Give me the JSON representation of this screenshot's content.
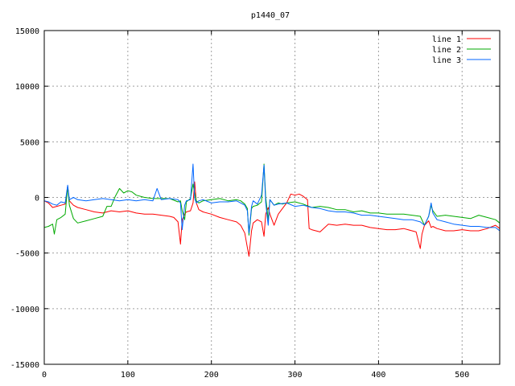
{
  "chart_data": {
    "type": "line",
    "title": "p1440_07",
    "xlabel": "",
    "ylabel": "",
    "xlim": [
      0,
      545
    ],
    "ylim": [
      -15000,
      15000
    ],
    "xticks": [
      0,
      100,
      200,
      300,
      400,
      500
    ],
    "yticks": [
      -15000,
      -10000,
      -5000,
      0,
      5000,
      10000,
      15000
    ],
    "grid": true,
    "legend_position": "top-right",
    "series": [
      {
        "name": "line 1",
        "color": "#ff0000",
        "x": [
          0,
          5,
          10,
          15,
          20,
          25,
          28,
          30,
          35,
          40,
          50,
          60,
          70,
          80,
          90,
          100,
          110,
          120,
          130,
          140,
          150,
          155,
          160,
          163,
          165,
          168,
          170,
          175,
          178,
          180,
          182,
          185,
          190,
          200,
          210,
          220,
          230,
          235,
          240,
          243,
          245,
          248,
          250,
          255,
          260,
          263,
          265,
          268,
          270,
          275,
          280,
          285,
          290,
          295,
          300,
          305,
          310,
          315,
          317,
          320,
          330,
          340,
          350,
          360,
          370,
          380,
          390,
          400,
          410,
          420,
          430,
          440,
          445,
          450,
          452,
          455,
          460,
          463,
          465,
          470,
          480,
          490,
          500,
          510,
          520,
          530,
          540,
          545
        ],
        "values": [
          -300,
          -500,
          -900,
          -800,
          -700,
          -600,
          1000,
          -300,
          -700,
          -900,
          -1100,
          -1300,
          -1400,
          -1200,
          -1300,
          -1200,
          -1400,
          -1500,
          -1500,
          -1600,
          -1700,
          -1800,
          -2200,
          -4200,
          -2000,
          -1500,
          -1300,
          -1200,
          -500,
          1400,
          -500,
          -1100,
          -1300,
          -1500,
          -1800,
          -2000,
          -2200,
          -2500,
          -3200,
          -4500,
          -5300,
          -3000,
          -2300,
          -2000,
          -2200,
          -3500,
          -1500,
          -900,
          -1500,
          -2500,
          -1500,
          -1000,
          -500,
          300,
          200,
          300,
          100,
          -200,
          -2800,
          -2900,
          -3100,
          -2400,
          -2500,
          -2400,
          -2500,
          -2500,
          -2700,
          -2800,
          -2900,
          -2900,
          -2800,
          -3000,
          -3100,
          -4600,
          -3300,
          -2500,
          -2100,
          -2700,
          -2600,
          -2800,
          -3000,
          -3000,
          -2900,
          -3000,
          -3000,
          -2800,
          -2500,
          -2800
        ]
      },
      {
        "name": "line 2",
        "color": "#00aa00",
        "x": [
          0,
          5,
          10,
          12,
          15,
          20,
          25,
          28,
          30,
          35,
          40,
          50,
          60,
          70,
          75,
          80,
          85,
          90,
          95,
          100,
          105,
          110,
          120,
          130,
          140,
          150,
          160,
          163,
          165,
          168,
          170,
          175,
          178,
          180,
          182,
          185,
          190,
          200,
          210,
          220,
          230,
          235,
          240,
          243,
          245,
          248,
          250,
          255,
          260,
          263,
          265,
          268,
          270,
          275,
          280,
          285,
          290,
          300,
          310,
          320,
          330,
          340,
          350,
          360,
          370,
          380,
          390,
          400,
          410,
          420,
          430,
          440,
          450,
          455,
          460,
          463,
          465,
          470,
          480,
          490,
          500,
          510,
          520,
          530,
          540,
          545
        ],
        "values": [
          -2700,
          -2600,
          -2400,
          -3300,
          -2000,
          -1800,
          -1500,
          1000,
          -700,
          -1900,
          -2300,
          -2100,
          -1900,
          -1700,
          -800,
          -800,
          100,
          800,
          400,
          600,
          500,
          200,
          0,
          -100,
          -100,
          -100,
          -400,
          -300,
          -1200,
          -2000,
          -400,
          -100,
          1200,
          400,
          -300,
          -500,
          -300,
          -200,
          -100,
          -300,
          -200,
          -300,
          -600,
          -1000,
          -3400,
          -1000,
          -800,
          -700,
          -400,
          3000,
          0,
          -2000,
          -200,
          -700,
          -500,
          -600,
          -500,
          -400,
          -600,
          -900,
          -800,
          -900,
          -1100,
          -1100,
          -1300,
          -1200,
          -1400,
          -1400,
          -1500,
          -1500,
          -1500,
          -1600,
          -1700,
          -2500,
          -1700,
          -700,
          -1200,
          -1700,
          -1600,
          -1700,
          -1800,
          -1900,
          -1600,
          -1800,
          -2000,
          -2300
        ]
      },
      {
        "name": "line 3",
        "color": "#0066ff",
        "x": [
          0,
          5,
          10,
          15,
          20,
          25,
          28,
          30,
          35,
          40,
          50,
          60,
          70,
          80,
          90,
          100,
          110,
          120,
          130,
          135,
          140,
          150,
          160,
          163,
          165,
          168,
          170,
          175,
          178,
          180,
          182,
          185,
          190,
          200,
          210,
          220,
          230,
          235,
          240,
          243,
          245,
          248,
          250,
          255,
          260,
          263,
          265,
          268,
          270,
          275,
          280,
          290,
          300,
          310,
          320,
          330,
          340,
          350,
          360,
          370,
          380,
          390,
          400,
          410,
          420,
          430,
          440,
          450,
          455,
          460,
          463,
          465,
          470,
          480,
          490,
          500,
          510,
          520,
          530,
          540,
          545
        ],
        "values": [
          -300,
          -400,
          -600,
          -700,
          -400,
          -500,
          1100,
          -200,
          0,
          -200,
          -300,
          -200,
          -100,
          -200,
          -300,
          -200,
          -300,
          -200,
          -300,
          800,
          -200,
          -100,
          -200,
          -500,
          -2900,
          -700,
          -300,
          -200,
          3000,
          -100,
          -500,
          -300,
          -200,
          -500,
          -400,
          -400,
          -300,
          -500,
          -700,
          -1200,
          -3200,
          -800,
          -300,
          -600,
          200,
          2900,
          -500,
          -2500,
          -200,
          -700,
          -600,
          -500,
          -800,
          -700,
          -900,
          -1000,
          -1200,
          -1300,
          -1300,
          -1400,
          -1600,
          -1600,
          -1700,
          -1800,
          -1900,
          -2000,
          -2000,
          -2200,
          -2500,
          -1700,
          -500,
          -1400,
          -2000,
          -2200,
          -2400,
          -2500,
          -2600,
          -2600,
          -2700,
          -2700,
          -3000
        ]
      }
    ]
  }
}
